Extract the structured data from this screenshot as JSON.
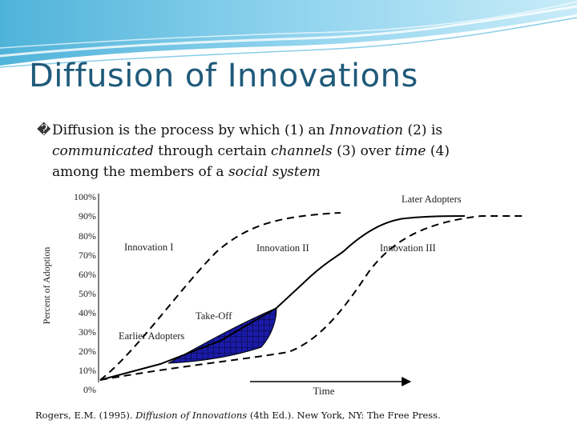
{
  "slide": {
    "title": "Diffusion of Innovations",
    "bullet_mark": "�",
    "line1": {
      "a": "Diffusion is the process by which (1) an ",
      "b": "Innovation",
      "c": " (2) is"
    },
    "line2": {
      "a": "communicated",
      "b": " through certain ",
      "c": "channels",
      "d": " (3) over ",
      "e": "time",
      "f": " (4)"
    },
    "line3": {
      "a": "among the members of a ",
      "b": "social system"
    }
  },
  "diagram": {
    "y_axis_label": "Percent of Adoption",
    "x_axis_label": "Time",
    "y_ticks": [
      "100%",
      "90%",
      "80%",
      "70%",
      "60%",
      "50%",
      "40%",
      "30%",
      "20%",
      "10%",
      "0%"
    ],
    "labels": {
      "later_adopters": "Later Adopters",
      "earlier_adopters": "Earlier Adopters",
      "take_off": "Take-Off",
      "innovation_1": "Innovation I",
      "innovation_2": "Innovation II",
      "innovation_3": "Innovation III"
    },
    "colors": {
      "takeoff_fill": "#1a1aa8",
      "grid": "#000000"
    }
  },
  "citation": {
    "a": "Rogers, E.M. (1995). ",
    "b": "Diffusion of Innovations",
    "c": " (4th Ed.). New York, NY: The Free Press."
  }
}
